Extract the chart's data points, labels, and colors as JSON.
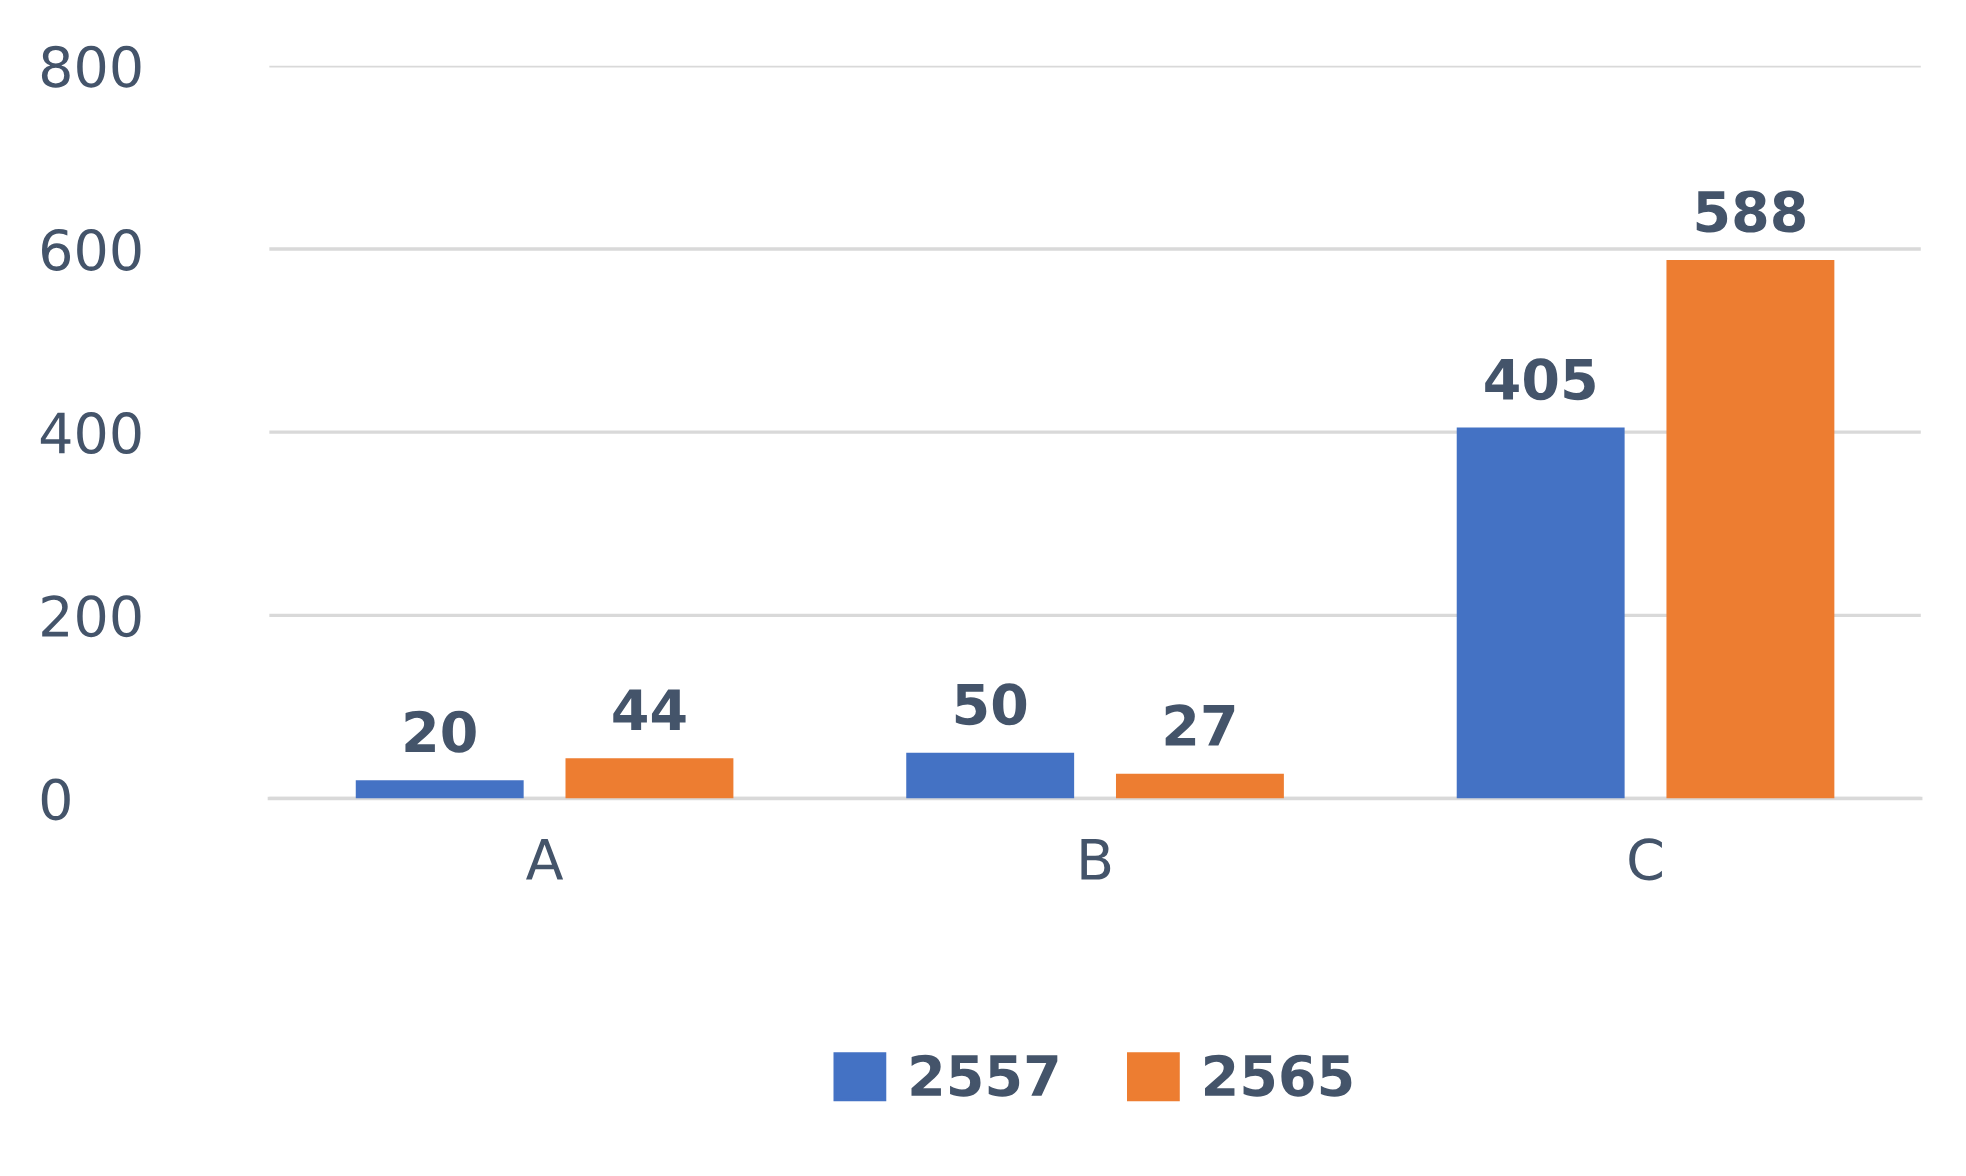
{
  "chart_data": {
    "type": "bar",
    "categories": [
      "A",
      "B",
      "C"
    ],
    "series": [
      {
        "name": "2557",
        "color": "#4472c4",
        "values": [
          20,
          50,
          405
        ]
      },
      {
        "name": "2565",
        "color": "#ed7d31",
        "values": [
          44,
          27,
          588
        ]
      }
    ],
    "ylim": [
      0,
      800
    ],
    "yticks": [
      0,
      200,
      400,
      600,
      800
    ],
    "grid": "y",
    "legend": "bottom",
    "data_labels": true
  }
}
